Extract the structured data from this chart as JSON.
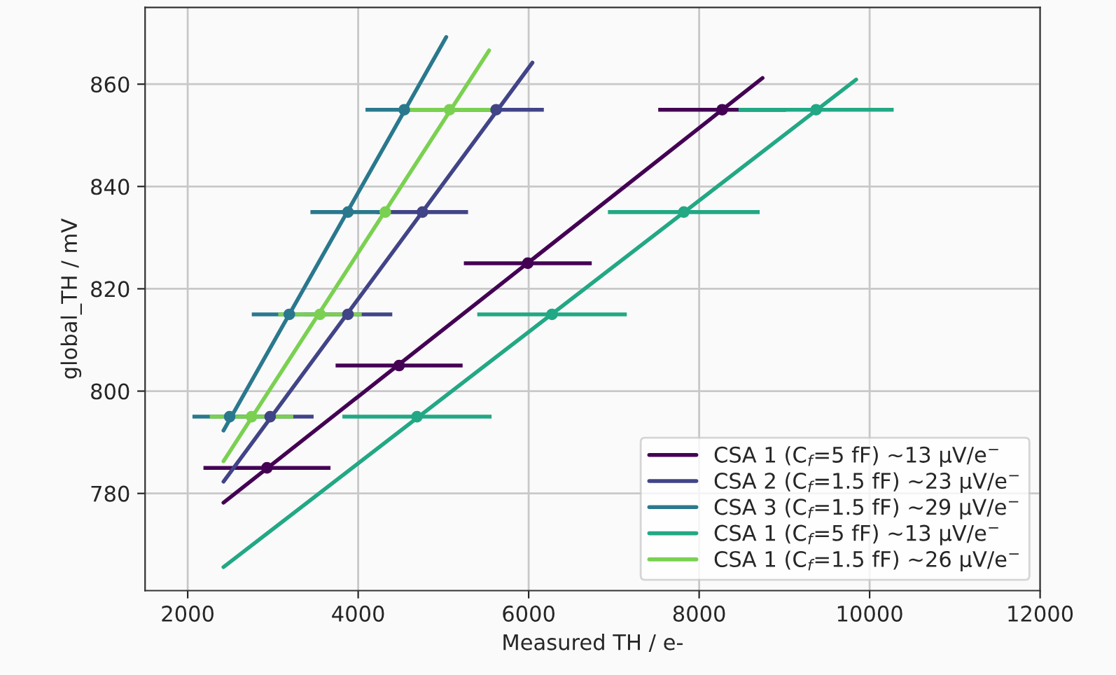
{
  "chart_data": {
    "type": "line",
    "xlabel": "Measured TH / e-",
    "ylabel": "global_TH / mV",
    "xlim": [
      1500,
      12000
    ],
    "ylim": [
      761,
      875
    ],
    "xticks": [
      2000,
      4000,
      6000,
      8000,
      10000,
      12000
    ],
    "yticks": [
      780,
      800,
      820,
      840,
      860
    ],
    "grid": true,
    "legend": "bottom right",
    "series": [
      {
        "type": "scatter",
        "color": "#440154",
        "marker": "circle",
        "x": [
          2930,
          4480,
          5990,
          8270
        ],
        "values": [
          785,
          805,
          825,
          855
        ],
        "xerrors": [
          745,
          745,
          750,
          750
        ]
      },
      {
        "name": "CSA 1 (C$_{f}$=5 fF) ~13 μV/e$^{−}$",
        "color": "#440154",
        "marker": "none",
        "x": [
          2420,
          8744
        ],
        "values": [
          778.2,
          861.2
        ]
      },
      {
        "type": "scatter",
        "color": "#414487",
        "marker": "circle",
        "x": [
          2967,
          3880,
          4754,
          5618
        ],
        "values": [
          795,
          815,
          835,
          855
        ],
        "xerrors": [
          510,
          520,
          535,
          560
        ]
      },
      {
        "name": "CSA 2 (C$_{f}$=1.5 fF) ~23 μV/e$^{−}$",
        "color": "#414487",
        "marker": "none",
        "x": [
          2420,
          6044
        ],
        "values": [
          782.3,
          864.2
        ]
      },
      {
        "type": "scatter",
        "color": "#2a788e",
        "marker": "circle",
        "x": [
          2492,
          3192,
          3880,
          4541
        ],
        "values": [
          795,
          815,
          835,
          855
        ],
        "xerrors": [
          436,
          440,
          440,
          455
        ]
      },
      {
        "name": "CSA 3 (C$_{f}$=1.5 fF) ~29 μV/e$^{−}$",
        "color": "#2a788e",
        "marker": "none",
        "x": [
          2420,
          5033
        ],
        "values": [
          792.3,
          869.2
        ]
      },
      {
        "type": "scatter",
        "color": "#22a884",
        "marker": "circle",
        "x": [
          4690,
          6274,
          7820,
          9372
        ],
        "values": [
          795,
          815,
          835,
          855
        ],
        "xerrors": [
          875,
          877,
          890,
          910
        ]
      },
      {
        "name": "CSA 1 (C$_{f}$=5 fF) ~13 μV/e$^{−}$",
        "color": "#22a884",
        "marker": "none",
        "x": [
          2420,
          9842
        ],
        "values": [
          765.6,
          860.9
        ]
      },
      {
        "type": "scatter",
        "color": "#7ad151",
        "marker": "circle",
        "x": [
          2749,
          3552,
          4318,
          5072
        ],
        "values": [
          795,
          815,
          835,
          855
        ],
        "xerrors": [
          490,
          490,
          null,
          490
        ]
      },
      {
        "name": "CSA 1 (C$_{f}$=1.5 fF) ~26 μV/e$^{−}$",
        "color": "#7ad151",
        "marker": "none",
        "x": [
          2420,
          5536
        ],
        "values": [
          786.3,
          866.6
        ]
      }
    ]
  }
}
